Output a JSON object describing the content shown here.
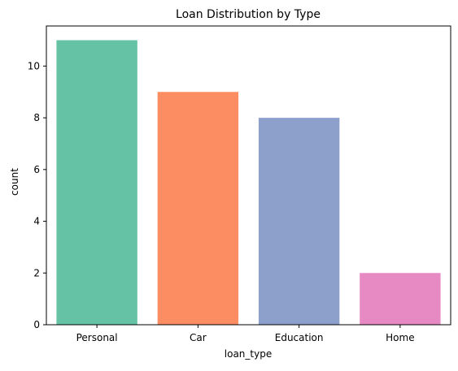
{
  "chart_data": {
    "type": "bar",
    "title": "Loan Distribution by Type",
    "xlabel": "loan_type",
    "ylabel": "count",
    "categories": [
      "Personal",
      "Car",
      "Education",
      "Home"
    ],
    "values": [
      11,
      9,
      8,
      2
    ],
    "colors": [
      "#66c2a5",
      "#fc8d62",
      "#8da0cb",
      "#e78ac3"
    ],
    "ylim": [
      0,
      11.55
    ],
    "yticks": [
      0,
      2,
      4,
      6,
      8,
      10
    ],
    "grid": false,
    "legend": "none"
  }
}
